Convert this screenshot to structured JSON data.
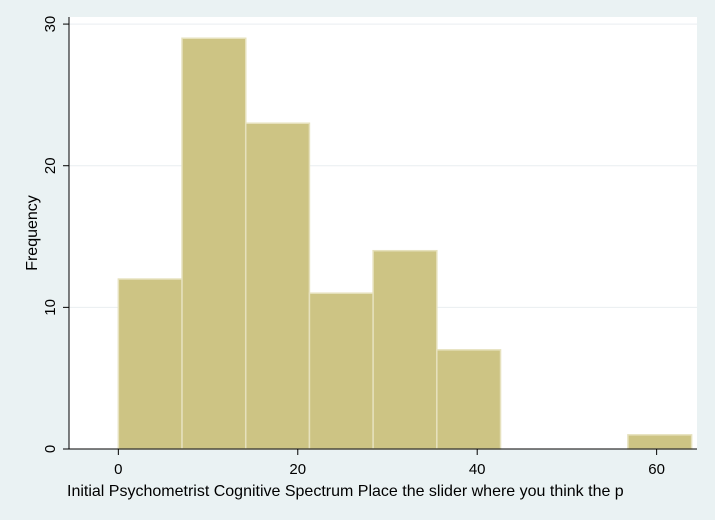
{
  "chart_data": {
    "type": "bar",
    "subtype": "histogram",
    "xlabel": "Initial Psychometrist Cognitive Spectrum  Place the slider where you think the p",
    "ylabel": "Frequency",
    "xlim": [
      -5.5,
      64.5
    ],
    "ylim": [
      0,
      30.5
    ],
    "xticks": [
      0,
      20,
      40,
      60
    ],
    "yticks": [
      0,
      10,
      20,
      30
    ],
    "bins": [
      {
        "x0": 0,
        "x1": 7.1,
        "count": 12
      },
      {
        "x0": 7.1,
        "x1": 14.2,
        "count": 29
      },
      {
        "x0": 14.2,
        "x1": 21.3,
        "count": 23
      },
      {
        "x0": 21.3,
        "x1": 28.4,
        "count": 11
      },
      {
        "x0": 28.4,
        "x1": 35.5,
        "count": 14
      },
      {
        "x0": 35.5,
        "x1": 42.6,
        "count": 7
      },
      {
        "x0": 56.8,
        "x1": 63.9,
        "count": 1
      }
    ],
    "bar_color": "#cdc484",
    "bar_edge_color": "#e6e1bd",
    "grid": true,
    "legend": "none"
  }
}
